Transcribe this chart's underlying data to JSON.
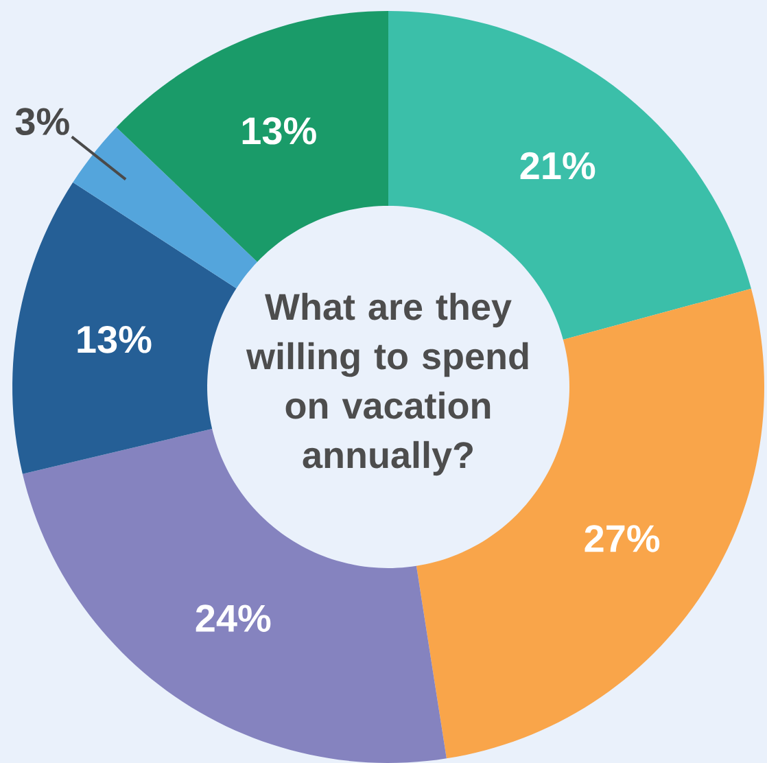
{
  "chart_data": {
    "type": "donut",
    "title": "What are they willing to spend on vacation annually?",
    "categories": [
      null,
      null,
      null,
      null,
      null,
      null
    ],
    "values": [
      21,
      27,
      24,
      13,
      3,
      13
    ],
    "colors": [
      "#3bbfa9",
      "#f9a54a",
      "#8583bf",
      "#255f96",
      "#54a5dc",
      "#1a9b69"
    ],
    "value_labels": [
      "21%",
      "27%",
      "24%",
      "13%",
      "3%",
      "13%"
    ]
  }
}
